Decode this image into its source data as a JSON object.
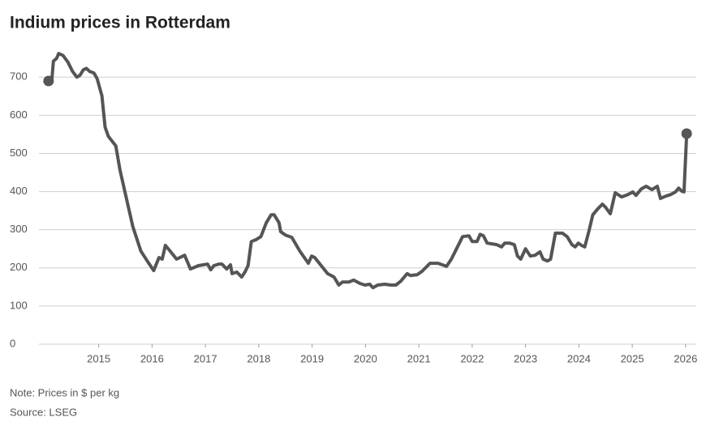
{
  "chart_data": {
    "type": "line",
    "title": "Indium prices in Rotterdam",
    "note": "Note: Prices in $ per kg",
    "source": "Source: LSEG",
    "color": "#555555",
    "grid": true,
    "end_markers": true,
    "xlim": [
      2013.88,
      2026.2
    ],
    "xticks": [
      2015,
      2016,
      2017,
      2018,
      2019,
      2020,
      2021,
      2022,
      2023,
      2024,
      2025,
      2026
    ],
    "ylim": [
      0,
      760
    ],
    "yticks": [
      0,
      100,
      200,
      300,
      400,
      500,
      600,
      700
    ],
    "x": [
      2014.06,
      2014.12,
      2014.15,
      2014.21,
      2014.25,
      2014.33,
      2014.42,
      2014.51,
      2014.59,
      2014.65,
      2014.71,
      2014.77,
      2014.83,
      2014.91,
      2014.97,
      2015.06,
      2015.12,
      2015.18,
      2015.32,
      2015.4,
      2015.52,
      2015.64,
      2015.79,
      2015.91,
      2016.03,
      2016.13,
      2016.19,
      2016.25,
      2016.34,
      2016.46,
      2016.52,
      2016.61,
      2016.72,
      2016.87,
      2017.04,
      2017.1,
      2017.16,
      2017.25,
      2017.31,
      2017.4,
      2017.47,
      2017.5,
      2017.59,
      2017.68,
      2017.74,
      2017.8,
      2017.86,
      2017.95,
      2018.04,
      2018.14,
      2018.23,
      2018.29,
      2018.38,
      2018.41,
      2018.5,
      2018.62,
      2018.77,
      2018.93,
      2018.99,
      2019.05,
      2019.17,
      2019.29,
      2019.41,
      2019.5,
      2019.57,
      2019.69,
      2019.78,
      2019.9,
      2019.99,
      2020.08,
      2020.14,
      2020.23,
      2020.36,
      2020.48,
      2020.57,
      2020.66,
      2020.78,
      2020.84,
      2020.97,
      2021.06,
      2021.21,
      2021.36,
      2021.52,
      2021.61,
      2021.7,
      2021.82,
      2021.94,
      2022.0,
      2022.09,
      2022.15,
      2022.21,
      2022.28,
      2022.37,
      2022.46,
      2022.55,
      2022.61,
      2022.7,
      2022.79,
      2022.85,
      2022.91,
      2023.0,
      2023.09,
      2023.18,
      2023.27,
      2023.33,
      2023.41,
      2023.47,
      2023.56,
      2023.69,
      2023.78,
      2023.87,
      2023.93,
      2023.99,
      2024.05,
      2024.11,
      2024.19,
      2024.26,
      2024.35,
      2024.44,
      2024.5,
      2024.59,
      2024.68,
      2024.8,
      2024.92,
      2025.01,
      2025.07,
      2025.17,
      2025.26,
      2025.37,
      2025.47,
      2025.53,
      2025.63,
      2025.72,
      2025.81,
      2025.87,
      2025.93,
      2025.97,
      2026.02
    ],
    "values": [
      690,
      690,
      742,
      749,
      762,
      757,
      740,
      715,
      700,
      705,
      719,
      723,
      715,
      711,
      696,
      651,
      569,
      545,
      520,
      456,
      382,
      308,
      244,
      218,
      193,
      227,
      223,
      259,
      244,
      223,
      227,
      233,
      197,
      206,
      210,
      195,
      206,
      210,
      210,
      197,
      208,
      185,
      189,
      176,
      189,
      206,
      269,
      274,
      282,
      318,
      339,
      339,
      318,
      295,
      286,
      280,
      244,
      212,
      231,
      227,
      206,
      185,
      176,
      155,
      163,
      163,
      168,
      159,
      155,
      157,
      148,
      155,
      157,
      155,
      155,
      165,
      185,
      180,
      182,
      191,
      212,
      212,
      204,
      223,
      248,
      282,
      284,
      269,
      269,
      288,
      284,
      265,
      263,
      261,
      255,
      265,
      265,
      261,
      231,
      223,
      250,
      231,
      233,
      242,
      223,
      218,
      223,
      291,
      291,
      282,
      261,
      255,
      265,
      259,
      255,
      297,
      339,
      354,
      367,
      359,
      342,
      397,
      386,
      392,
      399,
      390,
      407,
      414,
      405,
      414,
      382,
      388,
      392,
      399,
      409,
      401,
      399,
      552
    ]
  }
}
